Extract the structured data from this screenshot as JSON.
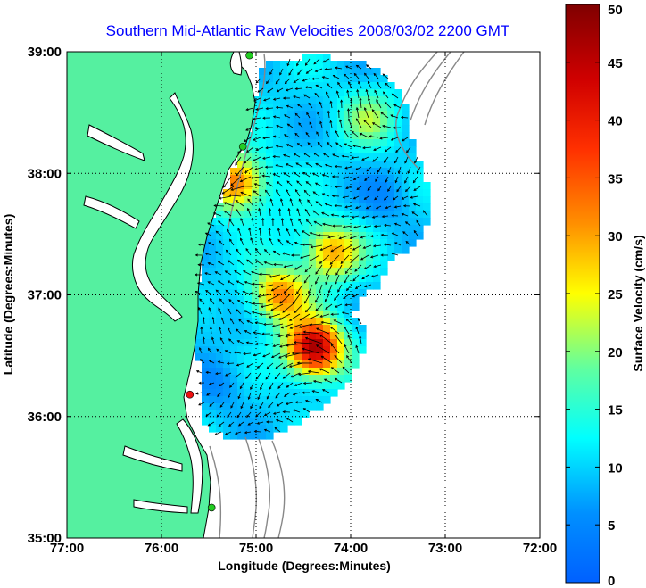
{
  "chart_data": {
    "type": "heatmap",
    "title": "Southern Mid-Atlantic Raw Velocities 2008/03/02 2200 GMT",
    "xlabel": "Longitude (Degrees:Minutes)",
    "ylabel": "Latitude (Degrees:Minutes)",
    "xlim": [
      -77,
      -72
    ],
    "ylim": [
      35,
      39
    ],
    "x_ticks": [
      {
        "value": -77,
        "label": "77:00"
      },
      {
        "value": -76,
        "label": "76:00"
      },
      {
        "value": -75,
        "label": "75:00"
      },
      {
        "value": -74,
        "label": "74:00"
      },
      {
        "value": -73,
        "label": "73:00"
      },
      {
        "value": -72,
        "label": "72:00"
      }
    ],
    "y_ticks": [
      {
        "value": 35,
        "label": "35:00"
      },
      {
        "value": 36,
        "label": "36:00"
      },
      {
        "value": 37,
        "label": "37:00"
      },
      {
        "value": 38,
        "label": "38:00"
      },
      {
        "value": 39,
        "label": "39:00"
      }
    ],
    "grid": true,
    "colorbar": {
      "label": "Surface Velocity (cm/s)",
      "range": [
        0,
        50
      ],
      "ticks": [
        0,
        5,
        10,
        15,
        20,
        25,
        30,
        35,
        40,
        45,
        50
      ],
      "colormap": "jet",
      "placement": "right"
    },
    "hotspots": [
      {
        "lon": -74.38,
        "lat": 36.56,
        "speed": 48
      },
      {
        "lon": -74.75,
        "lat": 37.0,
        "speed": 32
      },
      {
        "lon": -74.2,
        "lat": 37.35,
        "speed": 30
      },
      {
        "lon": -75.2,
        "lat": 37.92,
        "speed": 34
      },
      {
        "lon": -73.8,
        "lat": 38.45,
        "speed": 20
      },
      {
        "lon": -75.35,
        "lat": 36.25,
        "speed": 6
      },
      {
        "lon": -73.6,
        "lat": 37.8,
        "speed": 6
      },
      {
        "lon": -75.6,
        "lat": 36.8,
        "speed": 8
      },
      {
        "lon": -74.6,
        "lat": 37.6,
        "speed": 12
      }
    ],
    "background_speed": 10,
    "stations": [
      {
        "lon": -75.07,
        "lat": 38.97,
        "status": "active"
      },
      {
        "lon": -75.14,
        "lat": 38.22,
        "status": "active"
      },
      {
        "lon": -75.7,
        "lat": 36.18,
        "status": "inactive"
      },
      {
        "lon": -75.47,
        "lat": 35.25,
        "status": "active"
      }
    ]
  },
  "colors": {
    "land": "#55f0a0",
    "title": "#0000ff",
    "station_active": "#22cc22",
    "station_inactive": "#ee1111",
    "coast": "#000000",
    "bathymetry": "#888888"
  }
}
